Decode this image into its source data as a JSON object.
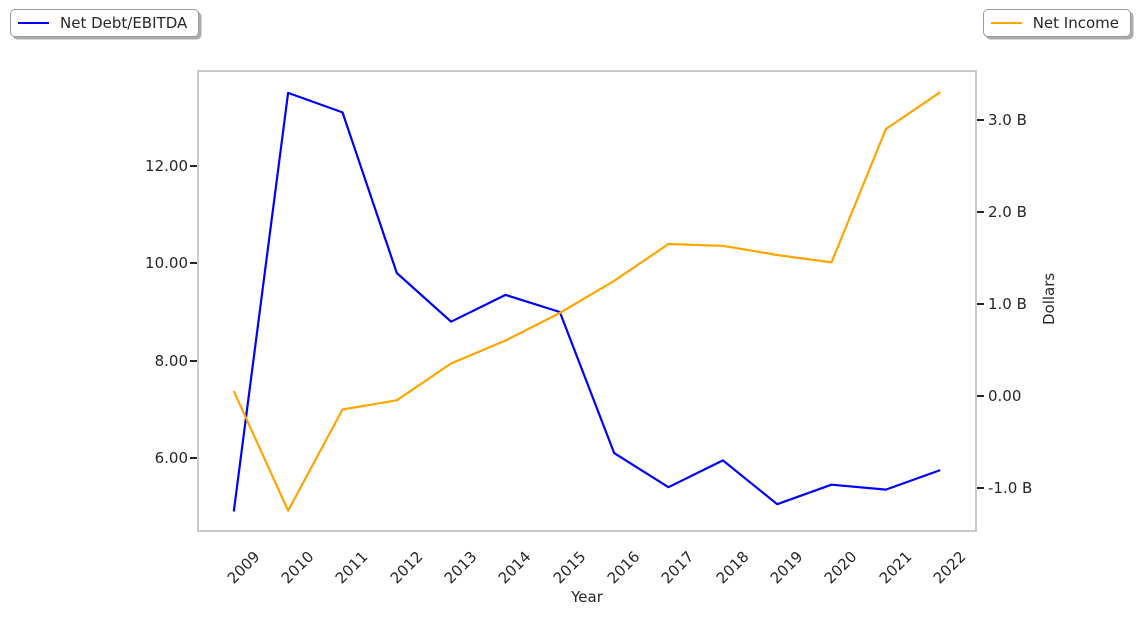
{
  "figure": {
    "background": "#ffffff",
    "text_color": "#262626",
    "frame_color": "#c9c9c9"
  },
  "legends": [
    {
      "label": "Net Debt/EBITDA",
      "color": "#0000ff",
      "position": "top-left"
    },
    {
      "label": "Net Income",
      "color": "#ffa500",
      "position": "top-right"
    }
  ],
  "chart_data": {
    "type": "line",
    "title": "",
    "xlabel": "Year",
    "ylabel_left": "",
    "ylabel_right": "Dollars",
    "grid": false,
    "x": [
      2009,
      2010,
      2011,
      2012,
      2013,
      2014,
      2015,
      2016,
      2017,
      2018,
      2019,
      2020,
      2021,
      2022
    ],
    "x_tick_labels": [
      "2009",
      "2010",
      "2011",
      "2012",
      "2013",
      "2014",
      "2015",
      "2016",
      "2017",
      "2018",
      "2019",
      "2020",
      "2021",
      "2022"
    ],
    "x_range": [
      2008.36,
      2022.64
    ],
    "series": [
      {
        "name": "Net Debt/EBITDA",
        "axis": "left",
        "color": "#0000ff",
        "values": [
          4.9,
          13.5,
          13.1,
          9.8,
          8.8,
          9.35,
          9.0,
          6.1,
          5.4,
          5.95,
          5.05,
          5.45,
          5.35,
          5.75
        ]
      },
      {
        "name": "Net Income",
        "axis": "right",
        "unit": "billions of dollars",
        "color": "#ffa500",
        "values": [
          0.05,
          -1.25,
          -0.15,
          -0.05,
          0.35,
          0.6,
          0.9,
          1.25,
          1.65,
          1.63,
          1.53,
          1.45,
          2.9,
          3.3
        ]
      }
    ],
    "left_axis": {
      "range": [
        4.52,
        13.93
      ],
      "tick_values": [
        12,
        10,
        8,
        6
      ],
      "tick_labels": [
        "12.00",
        "10.00",
        "8.00",
        "6.00"
      ]
    },
    "right_axis": {
      "range": [
        -1.46,
        3.52
      ],
      "tick_values": [
        3,
        2,
        1,
        0,
        -1
      ],
      "tick_labels": [
        "3.0 B",
        "2.0 B",
        "1.0 B",
        "0.00",
        "-1.0 B"
      ]
    }
  }
}
